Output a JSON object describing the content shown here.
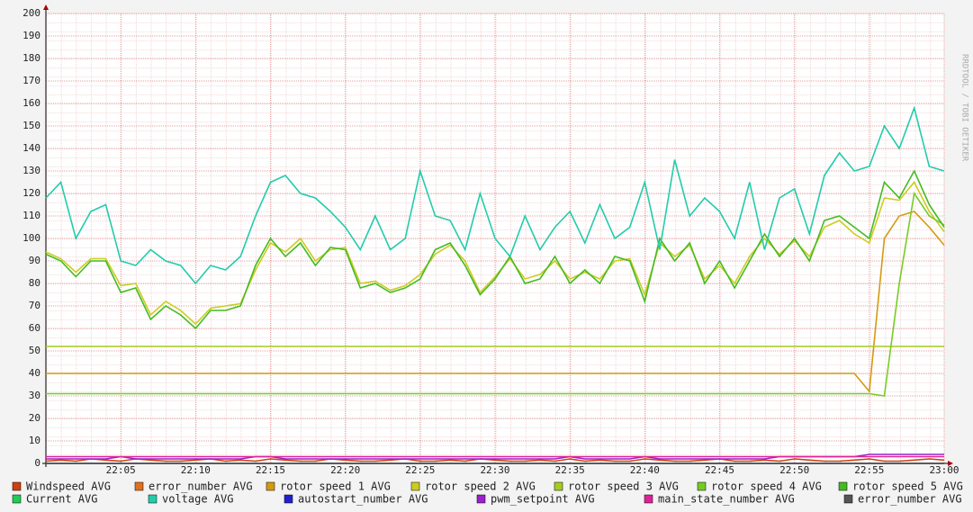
{
  "chart_data": {
    "type": "line",
    "watermark": "RRDTOOL / TOBI OETIKER",
    "x": [
      "22:00",
      "22:01",
      "22:02",
      "22:03",
      "22:04",
      "22:05",
      "22:06",
      "22:07",
      "22:08",
      "22:09",
      "22:10",
      "22:11",
      "22:12",
      "22:13",
      "22:14",
      "22:15",
      "22:16",
      "22:17",
      "22:18",
      "22:19",
      "22:20",
      "22:21",
      "22:22",
      "22:23",
      "22:24",
      "22:25",
      "22:26",
      "22:27",
      "22:28",
      "22:29",
      "22:30",
      "22:31",
      "22:32",
      "22:33",
      "22:34",
      "22:35",
      "22:36",
      "22:37",
      "22:38",
      "22:39",
      "22:40",
      "22:41",
      "22:42",
      "22:43",
      "22:44",
      "22:45",
      "22:46",
      "22:47",
      "22:48",
      "22:49",
      "22:50",
      "22:51",
      "22:52",
      "22:53",
      "22:54",
      "22:55",
      "22:56",
      "22:57",
      "22:58",
      "22:59",
      "23:00"
    ],
    "xlim": [
      "22:00",
      "23:00"
    ],
    "xticks": [
      "22:05",
      "22:10",
      "22:15",
      "22:20",
      "22:25",
      "22:30",
      "22:35",
      "22:40",
      "22:45",
      "22:50",
      "22:55",
      "23:00"
    ],
    "ylim": [
      0,
      200
    ],
    "yticks": [
      0,
      10,
      20,
      30,
      40,
      50,
      60,
      70,
      80,
      90,
      100,
      110,
      120,
      130,
      140,
      150,
      160,
      170,
      180,
      190,
      200
    ],
    "grid": true,
    "series": [
      {
        "name": "Windspeed AVG",
        "color": "#d04010",
        "values": [
          1,
          1.5,
          1,
          2,
          1.5,
          1,
          2,
          1.5,
          1,
          1,
          1.5,
          2,
          1,
          1.5,
          1,
          2,
          1.5,
          1,
          1,
          2,
          1.5,
          1,
          1,
          1.5,
          2,
          1,
          1,
          1.5,
          1,
          2,
          1.5,
          1,
          1,
          1.5,
          1,
          2,
          1,
          1.5,
          1,
          1,
          2,
          1.5,
          1,
          1,
          1.5,
          2,
          1,
          1,
          1.5,
          1,
          2,
          1.5,
          1,
          1,
          1.5,
          2,
          1,
          1,
          1.5,
          2,
          1.5
        ]
      },
      {
        "name": "error_number AVG",
        "color": "#e07020",
        "values": [
          0,
          0,
          0,
          0,
          0,
          0,
          0,
          0,
          0,
          0,
          0,
          0,
          0,
          0,
          0,
          0,
          0,
          0,
          0,
          0,
          0,
          0,
          0,
          0,
          0,
          0,
          0,
          0,
          0,
          0,
          0,
          0,
          0,
          0,
          0,
          0,
          0,
          0,
          0,
          0,
          0,
          0,
          0,
          0,
          0,
          0,
          0,
          0,
          0,
          0,
          0,
          0,
          0,
          0,
          0,
          0,
          0,
          0,
          0,
          0,
          0
        ]
      },
      {
        "name": "rotor speed 1 AVG",
        "color": "#d49a10",
        "values": [
          40,
          40,
          40,
          40,
          40,
          40,
          40,
          40,
          40,
          40,
          40,
          40,
          40,
          40,
          40,
          40,
          40,
          40,
          40,
          40,
          40,
          40,
          40,
          40,
          40,
          40,
          40,
          40,
          40,
          40,
          40,
          40,
          40,
          40,
          40,
          40,
          40,
          40,
          40,
          40,
          40,
          40,
          40,
          40,
          40,
          40,
          40,
          40,
          40,
          40,
          40,
          40,
          40,
          40,
          40,
          32,
          100,
          110,
          112,
          105,
          97
        ]
      },
      {
        "name": "rotor speed 2 AVG",
        "color": "#cccc22",
        "values": [
          94,
          91,
          85,
          91,
          91,
          79,
          80,
          66,
          72,
          68,
          62,
          69,
          70,
          71,
          86,
          98,
          94,
          100,
          90,
          95,
          96,
          80,
          81,
          77,
          79,
          84,
          93,
          97,
          90,
          76,
          83,
          91,
          82,
          84,
          90,
          82,
          85,
          82,
          90,
          91,
          75,
          98,
          92,
          97,
          82,
          88,
          80,
          92,
          100,
          93,
          99,
          92,
          105,
          108,
          102,
          98,
          118,
          117,
          125,
          112,
          103
        ]
      },
      {
        "name": "rotor speed 3 AVG",
        "color": "#a6cc22",
        "values": [
          52,
          52,
          52,
          52,
          52,
          52,
          52,
          52,
          52,
          52,
          52,
          52,
          52,
          52,
          52,
          52,
          52,
          52,
          52,
          52,
          52,
          52,
          52,
          52,
          52,
          52,
          52,
          52,
          52,
          52,
          52,
          52,
          52,
          52,
          52,
          52,
          52,
          52,
          52,
          52,
          52,
          52,
          52,
          52,
          52,
          52,
          52,
          52,
          52,
          52,
          52,
          52,
          52,
          52,
          52,
          52,
          52,
          52,
          52,
          52,
          52
        ]
      },
      {
        "name": "rotor speed 4 AVG",
        "color": "#77cc22",
        "values": [
          31,
          31,
          31,
          31,
          31,
          31,
          31,
          31,
          31,
          31,
          31,
          31,
          31,
          31,
          31,
          31,
          31,
          31,
          31,
          31,
          31,
          31,
          31,
          31,
          31,
          31,
          31,
          31,
          31,
          31,
          31,
          31,
          31,
          31,
          31,
          31,
          31,
          31,
          31,
          31,
          31,
          31,
          31,
          31,
          31,
          31,
          31,
          31,
          31,
          31,
          31,
          31,
          31,
          31,
          31,
          31,
          30,
          80,
          120,
          110,
          106
        ]
      },
      {
        "name": "rotor speed 5 AVG",
        "color": "#44bb22",
        "values": [
          93,
          90,
          83,
          90,
          90,
          76,
          78,
          64,
          70,
          66,
          60,
          68,
          68,
          70,
          88,
          100,
          92,
          98,
          88,
          96,
          95,
          78,
          80,
          76,
          78,
          82,
          95,
          98,
          88,
          75,
          82,
          92,
          80,
          82,
          92,
          80,
          86,
          80,
          92,
          90,
          72,
          100,
          90,
          98,
          80,
          90,
          78,
          90,
          102,
          92,
          100,
          90,
          108,
          110,
          105,
          100,
          125,
          118,
          130,
          115,
          105
        ]
      },
      {
        "name": "Current AVG",
        "color": "#22cc55",
        "values": [
          0,
          0,
          0,
          0,
          0,
          0,
          0,
          0,
          0,
          0,
          0,
          0,
          0,
          0,
          0,
          0,
          0,
          0,
          0,
          0,
          0,
          0,
          0,
          0,
          0,
          0,
          0,
          0,
          0,
          0,
          0,
          0,
          0,
          0,
          0,
          0,
          0,
          0,
          0,
          0,
          0,
          0,
          0,
          0,
          0,
          0,
          0,
          0,
          0,
          0,
          0,
          0,
          0,
          0,
          0,
          0,
          0,
          0,
          0,
          0,
          0
        ]
      },
      {
        "name": "voltage AVG",
        "color": "#22ccaa",
        "values": [
          118,
          125,
          100,
          112,
          115,
          90,
          88,
          95,
          90,
          88,
          80,
          88,
          86,
          92,
          110,
          125,
          128,
          120,
          118,
          112,
          105,
          95,
          110,
          95,
          100,
          130,
          110,
          108,
          95,
          120,
          100,
          92,
          110,
          95,
          105,
          112,
          98,
          115,
          100,
          105,
          125,
          95,
          135,
          110,
          118,
          112,
          100,
          125,
          95,
          118,
          122,
          102,
          128,
          138,
          130,
          132,
          150,
          140,
          158,
          132,
          130
        ]
      },
      {
        "name": "autostart_number AVG",
        "color": "#2222cc",
        "values": [
          0,
          0,
          0,
          0,
          0,
          0,
          0,
          0,
          0,
          0,
          0,
          0,
          0,
          0,
          0,
          0,
          0,
          0,
          0,
          0,
          0,
          0,
          0,
          0,
          0,
          0,
          0,
          0,
          0,
          0,
          0,
          0,
          0,
          0,
          0,
          0,
          0,
          0,
          0,
          0,
          0,
          0,
          0,
          0,
          0,
          0,
          0,
          0,
          0,
          0,
          0,
          0,
          0,
          0,
          0,
          0,
          0,
          0,
          0,
          0,
          0
        ]
      },
      {
        "name": "pwm_setpoint AVG",
        "color": "#9922cc",
        "values": [
          2,
          2,
          2,
          2,
          2,
          3,
          2,
          2,
          2,
          2,
          2,
          2,
          2,
          2,
          3,
          3,
          2,
          2,
          2,
          2,
          2,
          2,
          2,
          2,
          2,
          2,
          2,
          2,
          2,
          2,
          2,
          2,
          2,
          2,
          2,
          3,
          2,
          2,
          2,
          2,
          3,
          2,
          2,
          2,
          2,
          2,
          2,
          2,
          2,
          3,
          3,
          3,
          3,
          3,
          3,
          4,
          4,
          4,
          4,
          4,
          4
        ]
      },
      {
        "name": "main_state_number AVG",
        "color": "#dd2299",
        "values": [
          3,
          3,
          3,
          3,
          3,
          3,
          3,
          3,
          3,
          3,
          3,
          3,
          3,
          3,
          3,
          3,
          3,
          3,
          3,
          3,
          3,
          3,
          3,
          3,
          3,
          3,
          3,
          3,
          3,
          3,
          3,
          3,
          3,
          3,
          3,
          3,
          3,
          3,
          3,
          3,
          3,
          3,
          3,
          3,
          3,
          3,
          3,
          3,
          3,
          3,
          3,
          3,
          3,
          3,
          3,
          3,
          3,
          3,
          3,
          3,
          3
        ]
      },
      {
        "name": "error_number AVG",
        "color": "#555555",
        "values": [
          0,
          0,
          0,
          0,
          0,
          0,
          0,
          0,
          0,
          0,
          0,
          0,
          0,
          0,
          0,
          0,
          0,
          0,
          0,
          0,
          0,
          0,
          0,
          0,
          0,
          0,
          0,
          0,
          0,
          0,
          0,
          0,
          0,
          0,
          0,
          0,
          0,
          0,
          0,
          0,
          0,
          0,
          0,
          0,
          0,
          0,
          0,
          0,
          0,
          0,
          0,
          0,
          0,
          0,
          0,
          0,
          0,
          0,
          0,
          0,
          0
        ]
      }
    ]
  }
}
